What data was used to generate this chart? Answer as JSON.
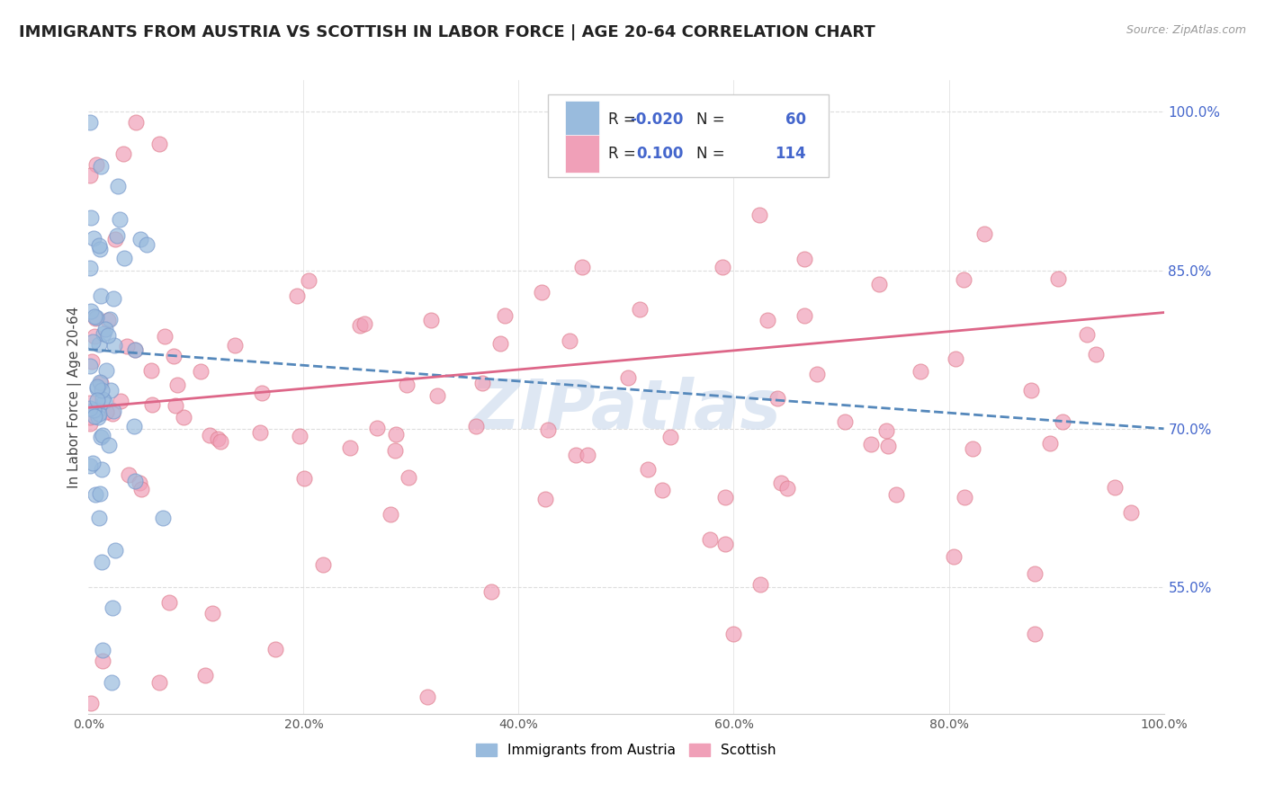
{
  "title": "IMMIGRANTS FROM AUSTRIA VS SCOTTISH IN LABOR FORCE | AGE 20-64 CORRELATION CHART",
  "source": "Source: ZipAtlas.com",
  "ylabel": "In Labor Force | Age 20-64",
  "xlim": [
    0.0,
    1.0
  ],
  "ylim": [
    0.43,
    1.03
  ],
  "xticks": [
    0.0,
    0.2,
    0.4,
    0.6,
    0.8,
    1.0
  ],
  "xticklabels": [
    "0.0%",
    "20.0%",
    "40.0%",
    "60.0%",
    "80.0%",
    "100.0%"
  ],
  "ytick_right_vals": [
    0.55,
    0.7,
    0.85,
    1.0
  ],
  "ytick_right_labels": [
    "55.0%",
    "70.0%",
    "85.0%",
    "100.0%"
  ],
  "grid_color": "#dddddd",
  "background_color": "#ffffff",
  "austria_color": "#99bbdd",
  "austria_edge_color": "#7799cc",
  "scottish_color": "#f0a0b8",
  "scottish_edge_color": "#e08090",
  "austria_line_color": "#5588bb",
  "scottish_line_color": "#dd6688",
  "austria_R": -0.02,
  "austria_N": 60,
  "scottish_R": 0.1,
  "scottish_N": 114,
  "austria_trend_x0": 0.0,
  "austria_trend_y0": 0.775,
  "austria_trend_x1": 1.0,
  "austria_trend_y1": 0.7,
  "scottish_trend_x0": 0.0,
  "scottish_trend_y0": 0.72,
  "scottish_trend_x1": 1.0,
  "scottish_trend_y1": 0.81,
  "legend_label_austria": "Immigrants from Austria",
  "legend_label_scottish": "Scottish",
  "watermark": "ZIPatlas",
  "title_fontsize": 13,
  "axis_label_fontsize": 11,
  "tick_fontsize": 10
}
